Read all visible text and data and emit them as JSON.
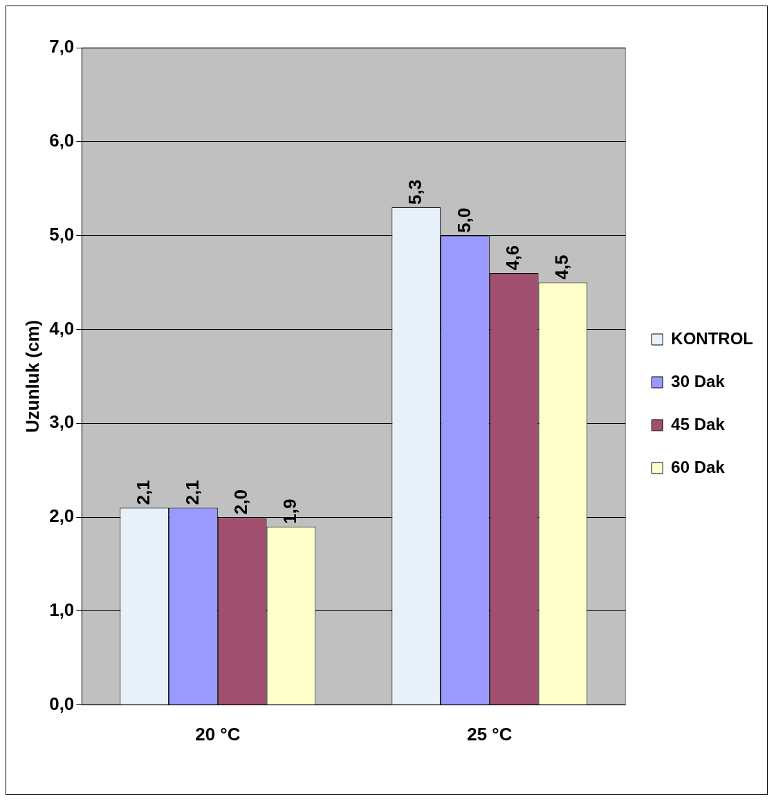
{
  "chart_data": {
    "type": "bar",
    "ylabel": "Uzunluk (cm)",
    "categories": [
      "20 °C",
      "25 °C"
    ],
    "series": [
      {
        "name": "KONTROL",
        "color": "#e8f1fa",
        "values": [
          2.1,
          5.3
        ],
        "value_labels": [
          "2,1",
          "5,3"
        ]
      },
      {
        "name": "30 Dak",
        "color": "#9999ff",
        "values": [
          2.1,
          5.0
        ],
        "value_labels": [
          "2,1",
          "5,0"
        ]
      },
      {
        "name": "45 Dak",
        "color": "#a0506e",
        "values": [
          2.0,
          4.6
        ],
        "value_labels": [
          "2,0",
          "4,6"
        ]
      },
      {
        "name": "60 Dak",
        "color": "#ffffcc",
        "values": [
          1.9,
          4.5
        ],
        "value_labels": [
          "1,9",
          "4,5"
        ]
      }
    ],
    "ylim": [
      0,
      7
    ],
    "yticks": [
      {
        "value": 0,
        "label": "0,0"
      },
      {
        "value": 1,
        "label": "1,0"
      },
      {
        "value": 2,
        "label": "2,0"
      },
      {
        "value": 3,
        "label": "3,0"
      },
      {
        "value": 4,
        "label": "4,0"
      },
      {
        "value": 5,
        "label": "5,0"
      },
      {
        "value": 6,
        "label": "6,0"
      },
      {
        "value": 7,
        "label": "7,0"
      }
    ],
    "grid": "y",
    "legend": "right"
  }
}
